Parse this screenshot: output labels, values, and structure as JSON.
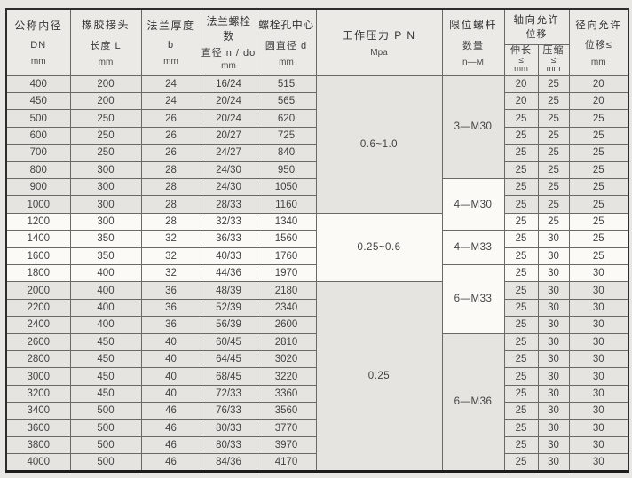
{
  "table": {
    "columns": [
      {
        "id": "dn",
        "lines": [
          "公称内径",
          "DN",
          "mm"
        ]
      },
      {
        "id": "length",
        "lines": [
          "橡胶接头",
          "长度 L",
          "mm"
        ]
      },
      {
        "id": "thickness",
        "lines": [
          "法兰厚度",
          "b",
          "mm"
        ]
      },
      {
        "id": "bolts",
        "lines": [
          "法兰螺栓数",
          "直径 n / do",
          "mm"
        ]
      },
      {
        "id": "circle",
        "lines": [
          "螺栓孔中心",
          "圆直径 d",
          "mm"
        ]
      },
      {
        "id": "pressure",
        "lines": [
          "工作压力 P N",
          "Mpa"
        ]
      },
      {
        "id": "limit",
        "lines": [
          "限位螺杆",
          "数量",
          "n—M"
        ]
      },
      {
        "id": "axial",
        "lines": [
          "轴向允许",
          "位移"
        ],
        "sub": [
          [
            "伸长",
            "≤",
            "mm"
          ],
          [
            "压缩",
            "≤",
            "mm"
          ]
        ]
      },
      {
        "id": "radial",
        "lines": [
          "径向允许",
          "位移≤",
          "mm"
        ]
      }
    ],
    "rows": [
      [
        "400",
        "200",
        "24",
        "16/24",
        "515",
        "20",
        "25",
        "20"
      ],
      [
        "450",
        "200",
        "24",
        "20/24",
        "565",
        "20",
        "25",
        "20"
      ],
      [
        "500",
        "250",
        "26",
        "20/24",
        "620",
        "25",
        "25",
        "25"
      ],
      [
        "600",
        "250",
        "26",
        "20/27",
        "725",
        "25",
        "25",
        "25"
      ],
      [
        "700",
        "250",
        "26",
        "24/27",
        "840",
        "25",
        "25",
        "25"
      ],
      [
        "800",
        "300",
        "28",
        "24/30",
        "950",
        "25",
        "25",
        "25"
      ],
      [
        "900",
        "300",
        "28",
        "24/30",
        "1050",
        "25",
        "25",
        "25"
      ],
      [
        "1000",
        "300",
        "28",
        "28/33",
        "1160",
        "25",
        "25",
        "25"
      ],
      [
        "1200",
        "300",
        "28",
        "32/33",
        "1340",
        "25",
        "25",
        "25"
      ],
      [
        "1400",
        "350",
        "32",
        "36/33",
        "1560",
        "25",
        "30",
        "25"
      ],
      [
        "1600",
        "350",
        "32",
        "40/33",
        "1760",
        "25",
        "30",
        "25"
      ],
      [
        "1800",
        "400",
        "32",
        "44/36",
        "1970",
        "25",
        "30",
        "30"
      ],
      [
        "2000",
        "400",
        "36",
        "48/39",
        "2180",
        "25",
        "30",
        "30"
      ],
      [
        "2200",
        "400",
        "36",
        "52/39",
        "2340",
        "25",
        "30",
        "30"
      ],
      [
        "2400",
        "400",
        "36",
        "56/39",
        "2600",
        "25",
        "30",
        "30"
      ],
      [
        "2600",
        "450",
        "40",
        "60/45",
        "2810",
        "25",
        "30",
        "30"
      ],
      [
        "2800",
        "450",
        "40",
        "64/45",
        "3020",
        "25",
        "30",
        "30"
      ],
      [
        "3000",
        "450",
        "40",
        "68/45",
        "3220",
        "25",
        "30",
        "30"
      ],
      [
        "3200",
        "450",
        "40",
        "72/33",
        "3360",
        "25",
        "30",
        "30"
      ],
      [
        "3400",
        "500",
        "46",
        "76/33",
        "3560",
        "25",
        "30",
        "30"
      ],
      [
        "3600",
        "500",
        "46",
        "80/33",
        "3770",
        "25",
        "30",
        "30"
      ],
      [
        "3800",
        "500",
        "46",
        "80/33",
        "3970",
        "25",
        "30",
        "30"
      ],
      [
        "4000",
        "500",
        "46",
        "84/36",
        "4170",
        "25",
        "30",
        "30"
      ]
    ],
    "pn_spans": [
      {
        "label": "0.6~1.0",
        "rows": 8,
        "shade": "gray"
      },
      {
        "label": "0.25~0.6",
        "rows": 4,
        "shade": "white"
      },
      {
        "label": "0.25",
        "rows": 11,
        "shade": "gray"
      }
    ],
    "nm_spans": [
      {
        "label": "3—M30",
        "rows": 6,
        "shade": "gray"
      },
      {
        "label": "4—M30",
        "rows": 3,
        "shade": "white"
      },
      {
        "label": "4—M33",
        "rows": 2,
        "shade": "white"
      },
      {
        "label": "6—M33",
        "rows": 4,
        "shade": "white"
      },
      {
        "label": "6—M36",
        "rows": 8,
        "shade": "gray"
      }
    ],
    "white_rows": [
      9,
      10,
      11,
      12
    ]
  }
}
